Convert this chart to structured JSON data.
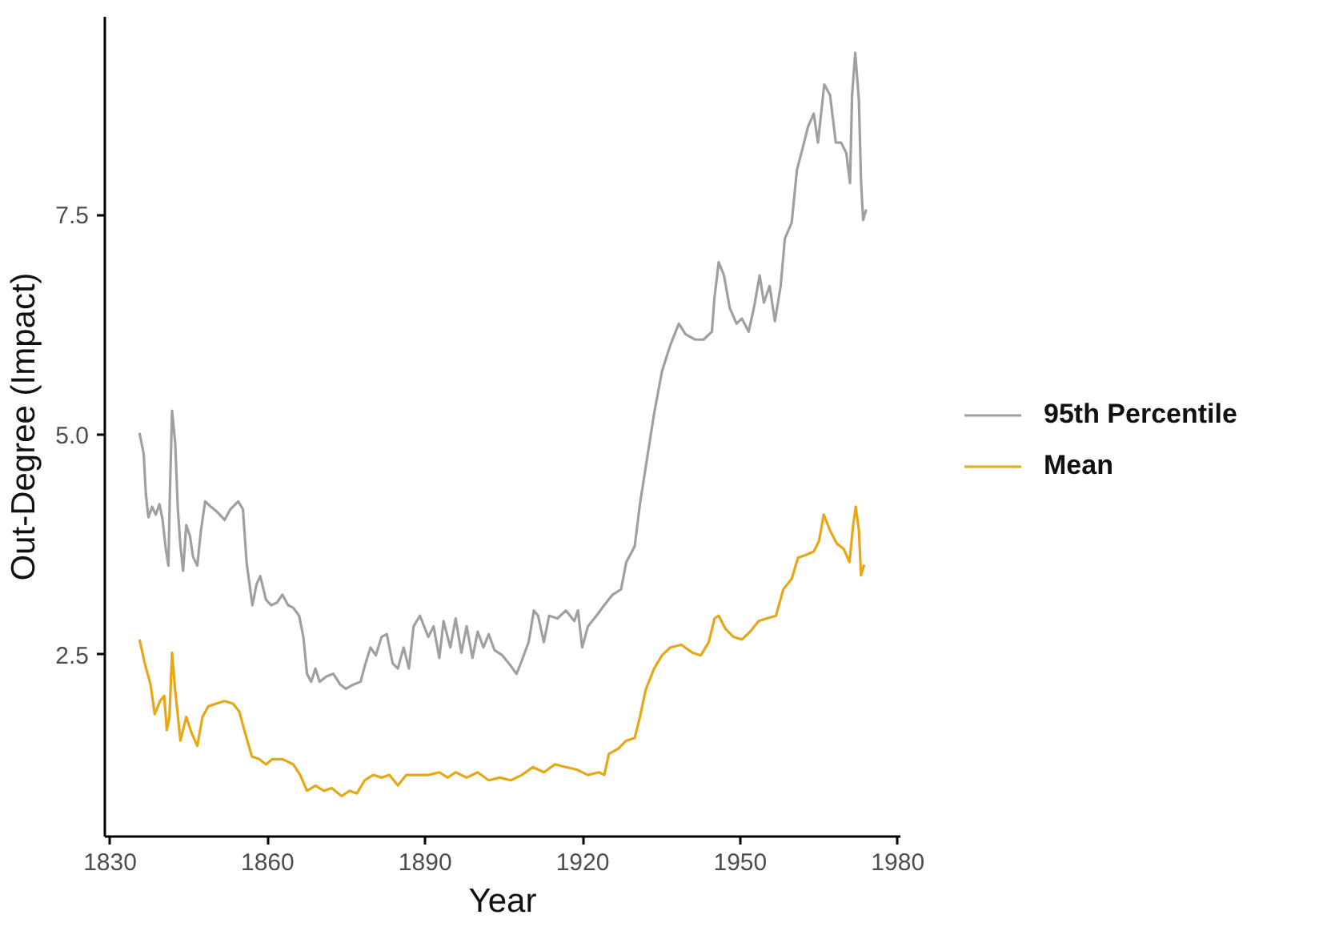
{
  "chart_data": {
    "type": "line",
    "xlabel": "Year",
    "ylabel": "Out-Degree (Impact)",
    "xlim": [
      1829,
      1980.5
    ],
    "ylim": [
      0.43,
      9.75
    ],
    "xticks": [
      1830,
      1860,
      1890,
      1920,
      1950,
      1980
    ],
    "yticks": [
      {
        "value": 2.5,
        "label": "2.5"
      },
      {
        "value": 5,
        "label": "5.0"
      },
      {
        "value": 7.5,
        "label": "7.5"
      }
    ],
    "grid": false,
    "legend": "right",
    "series": [
      {
        "name": "95th Percentile",
        "color": "#a0a0a0",
        "x": [
          1835.6,
          1836.4,
          1836.8,
          1837.3,
          1838.0,
          1838.7,
          1839.4,
          1840.0,
          1840.6,
          1841.1,
          1841.4,
          1841.8,
          1842.4,
          1842.9,
          1843.4,
          1843.9,
          1844.5,
          1845.2,
          1845.8,
          1846.6,
          1847.3,
          1848.1,
          1849.2,
          1850.4,
          1851.8,
          1852.9,
          1854.4,
          1855.3,
          1856.0,
          1857.1,
          1857.9,
          1858.6,
          1859.7,
          1860.7,
          1861.8,
          1862.8,
          1863.9,
          1864.9,
          1866.0,
          1866.8,
          1867.5,
          1868.3,
          1869.1,
          1869.9,
          1871.2,
          1872.5,
          1873.8,
          1874.9,
          1876.4,
          1877.7,
          1878.5,
          1879.6,
          1880.6,
          1881.7,
          1882.7,
          1883.8,
          1884.8,
          1885.9,
          1886.9,
          1887.8,
          1889.0,
          1890.6,
          1891.6,
          1892.7,
          1893.5,
          1894.8,
          1895.8,
          1896.9,
          1897.9,
          1899.0,
          1900.0,
          1901.1,
          1902.1,
          1903.2,
          1904.7,
          1906.3,
          1907.4,
          1908.4,
          1909.7,
          1910.7,
          1911.5,
          1912.6,
          1913.6,
          1915.2,
          1916.8,
          1918.4,
          1919.1,
          1919.9,
          1921.0,
          1922.6,
          1924.1,
          1925.7,
          1927.3,
          1928.3,
          1929.9,
          1930.9,
          1932.0,
          1933.6,
          1935.1,
          1936.7,
          1938.3,
          1939.6,
          1941.4,
          1943.0,
          1944.6,
          1945.1,
          1945.9,
          1946.9,
          1948.0,
          1949.3,
          1950.3,
          1951.6,
          1952.6,
          1953.7,
          1954.5,
          1955.6,
          1956.6,
          1957.7,
          1958.5,
          1959.8,
          1960.8,
          1961.9,
          1962.9,
          1964.0,
          1964.8,
          1966.0,
          1967.1,
          1968.2,
          1969.2,
          1970.2,
          1970.9,
          1971.3,
          1971.9,
          1972.6,
          1973.0,
          1973.4,
          1974.0
        ],
        "values": [
          5.02,
          4.78,
          4.33,
          4.06,
          4.18,
          4.09,
          4.21,
          4.03,
          3.7,
          3.51,
          4.36,
          5.27,
          4.9,
          4.15,
          3.73,
          3.45,
          3.97,
          3.85,
          3.61,
          3.51,
          3.91,
          4.24,
          4.18,
          4.12,
          4.03,
          4.15,
          4.24,
          4.15,
          3.54,
          3.06,
          3.3,
          3.39,
          3.12,
          3.06,
          3.09,
          3.18,
          3.06,
          3.03,
          2.94,
          2.7,
          2.28,
          2.19,
          2.34,
          2.19,
          2.25,
          2.28,
          2.16,
          2.11,
          2.16,
          2.19,
          2.37,
          2.58,
          2.49,
          2.7,
          2.73,
          2.4,
          2.34,
          2.58,
          2.34,
          2.82,
          2.94,
          2.7,
          2.82,
          2.46,
          2.88,
          2.58,
          2.91,
          2.52,
          2.82,
          2.46,
          2.76,
          2.58,
          2.73,
          2.55,
          2.49,
          2.37,
          2.28,
          2.43,
          2.64,
          3.0,
          2.94,
          2.64,
          2.94,
          2.91,
          3.0,
          2.88,
          3.0,
          2.58,
          2.82,
          2.94,
          3.06,
          3.18,
          3.24,
          3.55,
          3.73,
          4.21,
          4.63,
          5.24,
          5.72,
          6.02,
          6.26,
          6.14,
          6.08,
          6.08,
          6.17,
          6.56,
          6.96,
          6.81,
          6.44,
          6.26,
          6.32,
          6.17,
          6.44,
          6.81,
          6.5,
          6.69,
          6.29,
          6.69,
          7.23,
          7.41,
          8.01,
          8.26,
          8.5,
          8.65,
          8.32,
          8.98,
          8.86,
          8.32,
          8.32,
          8.2,
          7.86,
          8.86,
          9.34,
          8.8,
          7.89,
          7.44,
          7.56
        ]
      },
      {
        "name": "Mean",
        "color": "#e6a817",
        "x": [
          1835.6,
          1836.6,
          1837.7,
          1838.5,
          1839.5,
          1840.3,
          1840.8,
          1841.3,
          1841.8,
          1842.4,
          1843.4,
          1844.5,
          1845.5,
          1846.6,
          1847.6,
          1848.7,
          1850.2,
          1851.8,
          1853.4,
          1854.6,
          1855.7,
          1857.0,
          1858.4,
          1859.7,
          1860.9,
          1862.8,
          1864.9,
          1866.2,
          1867.5,
          1869.1,
          1870.7,
          1872.2,
          1874.1,
          1875.6,
          1877.0,
          1878.5,
          1880.1,
          1881.7,
          1883.2,
          1884.8,
          1886.4,
          1889.0,
          1890.6,
          1892.7,
          1894.3,
          1895.8,
          1897.9,
          1900.0,
          1902.1,
          1904.2,
          1906.3,
          1908.4,
          1910.5,
          1912.6,
          1914.7,
          1916.8,
          1918.9,
          1921.0,
          1923.1,
          1924.1,
          1925.0,
          1926.8,
          1928.3,
          1929.9,
          1930.9,
          1932.0,
          1933.6,
          1935.1,
          1936.7,
          1938.8,
          1940.9,
          1942.5,
          1944.0,
          1945.1,
          1945.9,
          1947.2,
          1948.7,
          1950.3,
          1951.9,
          1953.5,
          1955.1,
          1956.8,
          1958.2,
          1959.8,
          1961.0,
          1962.4,
          1964.0,
          1965.0,
          1965.9,
          1967.1,
          1968.4,
          1969.7,
          1970.8,
          1971.5,
          1972.0,
          1972.6,
          1973.0,
          1973.6
        ],
        "values": [
          2.67,
          2.4,
          2.16,
          1.82,
          1.97,
          2.03,
          1.64,
          1.79,
          2.52,
          2.09,
          1.52,
          1.79,
          1.61,
          1.46,
          1.79,
          1.91,
          1.94,
          1.97,
          1.94,
          1.85,
          1.61,
          1.34,
          1.31,
          1.25,
          1.31,
          1.31,
          1.25,
          1.13,
          0.95,
          1.01,
          0.95,
          0.98,
          0.89,
          0.95,
          0.92,
          1.07,
          1.13,
          1.1,
          1.13,
          1.01,
          1.13,
          1.13,
          1.13,
          1.16,
          1.1,
          1.16,
          1.1,
          1.16,
          1.07,
          1.1,
          1.07,
          1.13,
          1.22,
          1.16,
          1.25,
          1.22,
          1.19,
          1.13,
          1.16,
          1.13,
          1.37,
          1.43,
          1.52,
          1.55,
          1.79,
          2.1,
          2.34,
          2.49,
          2.58,
          2.61,
          2.52,
          2.49,
          2.64,
          2.91,
          2.94,
          2.79,
          2.7,
          2.67,
          2.76,
          2.88,
          2.91,
          2.94,
          3.24,
          3.36,
          3.6,
          3.63,
          3.67,
          3.79,
          4.09,
          3.91,
          3.76,
          3.7,
          3.55,
          3.97,
          4.18,
          3.91,
          3.4,
          3.52
        ]
      }
    ]
  }
}
